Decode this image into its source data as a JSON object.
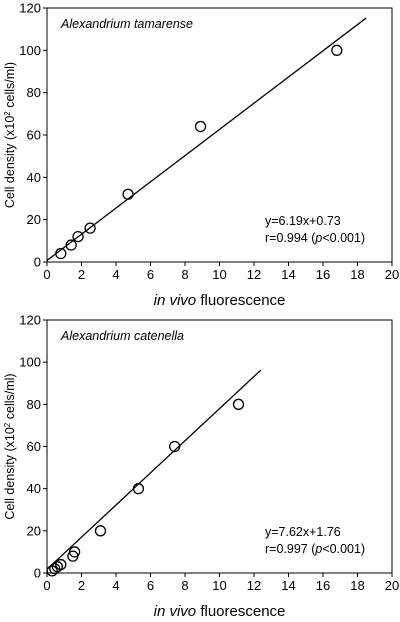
{
  "chart_data": [
    {
      "type": "scatter",
      "title": "Alexandrium tamarense",
      "xlabel_italic": "in vivo",
      "xlabel_rest": " fluorescence",
      "ylabel_main": "Cell density (x10",
      "ylabel_sup": "2",
      "ylabel_end": " cells/ml)",
      "xlim": [
        0,
        20
      ],
      "ylim": [
        0,
        120
      ],
      "xticks": [
        "0",
        "2",
        "4",
        "6",
        "8",
        "10",
        "12",
        "14",
        "16",
        "18",
        "20"
      ],
      "yticks": [
        "0",
        "20",
        "40",
        "60",
        "80",
        "100",
        "120"
      ],
      "points": [
        {
          "x": 0.8,
          "y": 4
        },
        {
          "x": 1.4,
          "y": 8
        },
        {
          "x": 1.8,
          "y": 12
        },
        {
          "x": 2.5,
          "y": 16
        },
        {
          "x": 4.7,
          "y": 32
        },
        {
          "x": 8.9,
          "y": 64
        },
        {
          "x": 16.8,
          "y": 100
        }
      ],
      "fit": {
        "slope": 6.19,
        "intercept": 0.73,
        "x_start": 0,
        "x_end": 18.5
      },
      "annotation_line1": "y=6.19x+0.73",
      "annotation_line2_pre": "r=0.994 (",
      "annotation_line2_italic": "p",
      "annotation_line2_post": "<0.001)",
      "grid": false
    },
    {
      "type": "scatter",
      "title": "Alexandrium catenella",
      "xlabel_italic": "in vivo",
      "xlabel_rest": " fluorescence",
      "ylabel_main": "Cell density (x10",
      "ylabel_sup": "2",
      "ylabel_end": " cells/ml)",
      "xlim": [
        0,
        20
      ],
      "ylim": [
        0,
        120
      ],
      "xticks": [
        "0",
        "2",
        "4",
        "6",
        "8",
        "10",
        "12",
        "14",
        "16",
        "18",
        "20"
      ],
      "yticks": [
        "0",
        "20",
        "40",
        "60",
        "80",
        "100",
        "120"
      ],
      "points": [
        {
          "x": 0.3,
          "y": 1
        },
        {
          "x": 0.45,
          "y": 2
        },
        {
          "x": 0.6,
          "y": 3
        },
        {
          "x": 0.8,
          "y": 4
        },
        {
          "x": 1.5,
          "y": 8
        },
        {
          "x": 1.6,
          "y": 10
        },
        {
          "x": 3.1,
          "y": 20
        },
        {
          "x": 5.3,
          "y": 40
        },
        {
          "x": 7.4,
          "y": 60
        },
        {
          "x": 11.1,
          "y": 80
        }
      ],
      "fit": {
        "slope": 7.62,
        "intercept": 1.76,
        "x_start": 0,
        "x_end": 12.4
      },
      "annotation_line1": "y=7.62x+1.76",
      "annotation_line2_pre": "r=0.997 (",
      "annotation_line2_italic": "p",
      "annotation_line2_post": "<0.001)",
      "grid": false
    }
  ]
}
